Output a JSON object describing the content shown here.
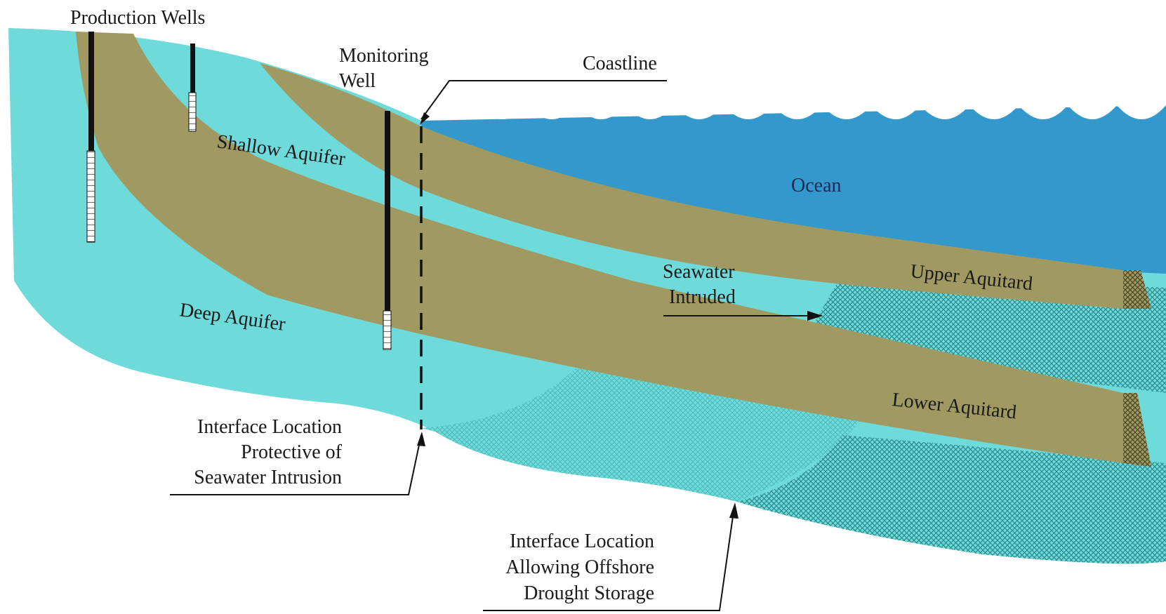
{
  "labels": {
    "production_wells": "Production Wells",
    "monitoring_well_line1": "Monitoring",
    "monitoring_well_line2": "Well",
    "coastline": "Coastline",
    "ocean": "Ocean",
    "shallow_aquifer": "Shallow Aquifer",
    "deep_aquifer": "Deep Aquifer",
    "upper_aquitard": "Upper Aquitard",
    "lower_aquitard": "Lower Aquitard",
    "seawater_intruded_line1": "Seawater",
    "seawater_intruded_line2": "Intruded",
    "interface_protective_line1": "Interface Location",
    "interface_protective_line2": "Protective of",
    "interface_protective_line3": "Seawater Intrusion",
    "interface_offshore_line1": "Interface Location",
    "interface_offshore_line2": "Allowing Offshore",
    "interface_offshore_line3": "Drought Storage"
  },
  "colors": {
    "aquifer": "#6fdada",
    "aquitard": "#a09a62",
    "ocean": "#3399cc",
    "seawater_hatch": "#2c8a8a",
    "well_casing": "#111111",
    "background": "#ffffff"
  }
}
